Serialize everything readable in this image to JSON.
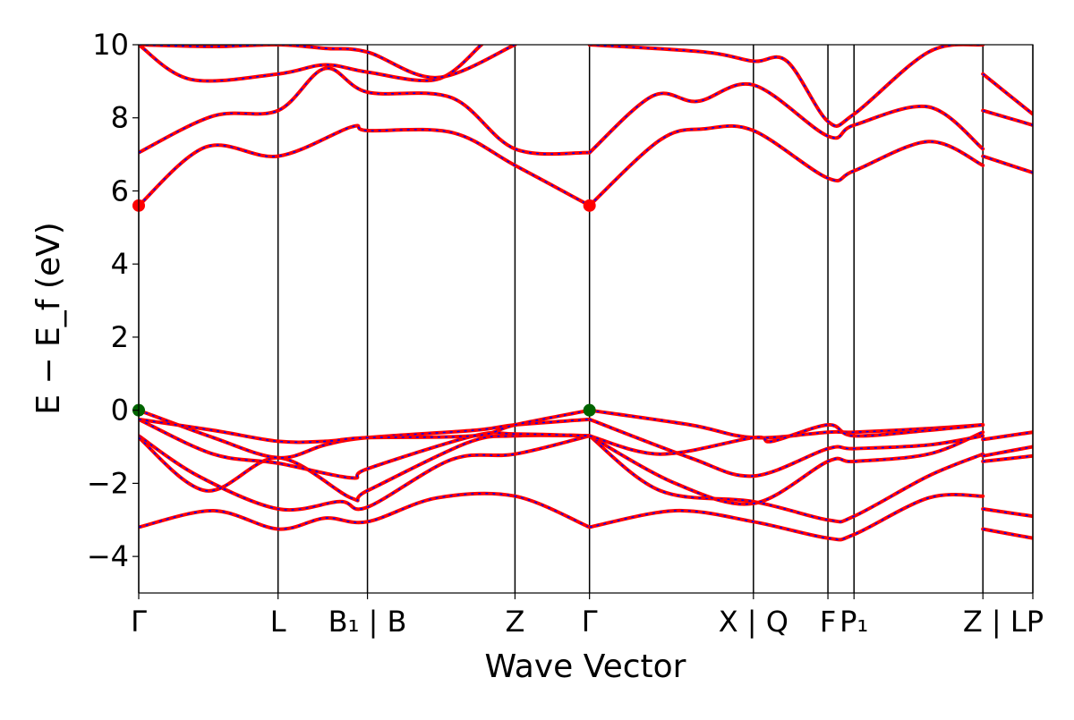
{
  "chart_data": {
    "type": "line",
    "title": "",
    "xlabel": "Wave Vector",
    "ylabel": "E − E_f (eV)",
    "ylim": [
      -5,
      10
    ],
    "yticks": [
      -4,
      -2,
      0,
      2,
      4,
      6,
      8,
      10
    ],
    "ytick_labels": [
      "−4",
      "−2",
      "0",
      "2",
      "4",
      "6",
      "8",
      "10"
    ],
    "xlim": [
      0,
      12.0
    ],
    "kpoints": [
      {
        "x": 0.0,
        "label": "Γ"
      },
      {
        "x": 1.87,
        "label": "L"
      },
      {
        "x": 3.07,
        "label": "B₁ | B"
      },
      {
        "x": 5.05,
        "label": "Z"
      },
      {
        "x": 6.05,
        "label": "Γ"
      },
      {
        "x": 8.25,
        "label": "X | Q"
      },
      {
        "x": 9.25,
        "label": "F"
      },
      {
        "x": 9.6,
        "label": "P₁"
      },
      {
        "x": 11.33,
        "label": "Z | LP"
      },
      {
        "x": 12.0,
        "label": ""
      }
    ],
    "bands": [
      {
        "x": [
          0,
          1.0,
          1.87,
          2.5,
          3.07,
          4.0,
          5.05,
          6.05
        ],
        "y": [
          -3.2,
          -2.75,
          -3.25,
          -2.95,
          -3.05,
          -2.4,
          -2.35,
          -3.2
        ]
      },
      {
        "x": [
          0,
          0.8,
          1.87,
          2.7,
          3.07,
          4.2,
          5.05,
          6.05
        ],
        "y": [
          -0.7,
          -1.8,
          -2.7,
          -2.5,
          -2.65,
          -1.35,
          -1.2,
          -0.7
        ]
      },
      {
        "x": [
          0,
          0.9,
          1.87,
          2.85,
          3.07,
          4.4,
          5.05,
          6.05
        ],
        "y": [
          -0.75,
          -2.2,
          -1.3,
          -2.4,
          -2.2,
          -0.9,
          -0.7,
          -0.7
        ]
      },
      {
        "x": [
          0,
          1.0,
          1.87,
          2.85,
          3.07,
          4.5,
          5.05,
          6.05
        ],
        "y": [
          -0.25,
          -1.2,
          -1.45,
          -1.85,
          -1.6,
          -0.7,
          -0.65,
          -0.7
        ]
      },
      {
        "x": [
          0,
          1.0,
          1.87,
          2.5,
          3.07,
          4.5,
          5.05,
          6.05
        ],
        "y": [
          0.0,
          -0.75,
          -1.3,
          -0.95,
          -0.75,
          -0.55,
          -0.4,
          -0.25
        ]
      },
      {
        "x": [
          0,
          1.0,
          1.87,
          2.5,
          3.07,
          4.5,
          5.05,
          6.05
        ],
        "y": [
          -0.25,
          -0.55,
          -0.85,
          -0.85,
          -0.75,
          -0.7,
          -0.4,
          0.0
        ]
      },
      {
        "x": [
          6.05,
          7.2,
          8.25,
          9.25,
          9.6,
          10.6,
          11.33
        ],
        "y": [
          -3.2,
          -2.75,
          -3.05,
          -3.5,
          -3.4,
          -2.4,
          -2.35
        ]
      },
      {
        "x": [
          6.05,
          7.0,
          8.25,
          9.25,
          9.6,
          10.6,
          11.33
        ],
        "y": [
          -0.7,
          -2.2,
          -2.5,
          -3.0,
          -2.9,
          -1.8,
          -1.2
        ]
      },
      {
        "x": [
          6.05,
          7.2,
          8.25,
          9.25,
          9.6,
          10.6,
          11.33
        ],
        "y": [
          -0.7,
          -2.0,
          -2.55,
          -1.4,
          -1.4,
          -1.2,
          -0.6
        ]
      },
      {
        "x": [
          6.05,
          7.4,
          8.25,
          9.25,
          9.6,
          10.6,
          11.33
        ],
        "y": [
          -0.25,
          -1.3,
          -1.8,
          -1.05,
          -1.05,
          -0.95,
          -0.7
        ]
      },
      {
        "x": [
          6.05,
          7.4,
          8.25,
          9.25,
          9.6,
          10.6,
          11.33
        ],
        "y": [
          0.0,
          -0.4,
          -0.75,
          -0.6,
          -0.6,
          -0.5,
          -0.4
        ]
      },
      {
        "x": [
          6.05,
          7.0,
          8.25,
          8.5,
          9.25,
          9.6,
          10.6,
          11.33
        ],
        "y": [
          -0.7,
          -1.2,
          -0.75,
          -0.85,
          -0.4,
          -0.7,
          -0.55,
          -0.4
        ]
      },
      {
        "x": [
          11.33,
          12.0
        ],
        "y": [
          -0.8,
          -0.6
        ]
      },
      {
        "x": [
          11.33,
          12.0
        ],
        "y": [
          -1.25,
          -1.0
        ]
      },
      {
        "x": [
          11.33,
          12.0
        ],
        "y": [
          -1.4,
          -1.25
        ]
      },
      {
        "x": [
          11.33,
          12.0
        ],
        "y": [
          -2.7,
          -2.9
        ]
      },
      {
        "x": [
          11.33,
          12.0
        ],
        "y": [
          -3.25,
          -3.5
        ]
      },
      {
        "x": [
          0,
          0.9,
          1.87,
          2.85,
          3.07,
          4.2,
          5.05,
          6.05
        ],
        "y": [
          5.6,
          7.2,
          6.95,
          7.75,
          7.65,
          7.6,
          6.7,
          5.6
        ]
      },
      {
        "x": [
          0,
          1.0,
          1.87,
          2.5,
          3.07,
          4.2,
          5.05,
          6.05
        ],
        "y": [
          7.05,
          8.05,
          8.2,
          9.35,
          8.7,
          8.55,
          7.15,
          7.05
        ]
      },
      {
        "x": [
          0,
          0.7,
          1.87,
          2.5,
          3.07,
          4.0,
          4.6
        ],
        "y": [
          10.0,
          9.05,
          9.2,
          9.45,
          9.25,
          9.05,
          10.0
        ]
      },
      {
        "x": [
          0,
          1.0,
          1.87,
          2.5,
          3.07,
          4.0,
          5.05
        ],
        "y": [
          10.0,
          9.95,
          10.0,
          9.9,
          9.8,
          9.1,
          10.0
        ]
      },
      {
        "x": [
          6.05,
          7.0,
          7.6,
          8.25,
          9.25,
          9.6,
          10.6,
          11.33
        ],
        "y": [
          5.6,
          7.4,
          7.7,
          7.65,
          6.35,
          6.55,
          7.35,
          6.7
        ]
      },
      {
        "x": [
          6.05,
          6.9,
          7.5,
          8.25,
          9.25,
          9.6,
          10.6,
          11.33
        ],
        "y": [
          7.05,
          8.6,
          8.45,
          8.9,
          7.5,
          7.8,
          8.3,
          7.15
        ]
      },
      {
        "x": [
          6.05,
          7.6,
          8.25,
          8.7,
          9.25,
          9.6,
          10.6,
          11.33
        ],
        "y": [
          10.0,
          9.8,
          9.55,
          9.55,
          7.9,
          8.1,
          9.8,
          10.0
        ]
      },
      {
        "x": [
          11.33,
          12.0
        ],
        "y": [
          6.95,
          6.5
        ]
      },
      {
        "x": [
          11.33,
          12.0
        ],
        "y": [
          8.2,
          7.8
        ]
      },
      {
        "x": [
          11.33,
          12.0
        ],
        "y": [
          9.2,
          8.1
        ]
      }
    ],
    "markers": [
      {
        "x": 0.0,
        "y": 5.6,
        "color": "#ff0000"
      },
      {
        "x": 6.05,
        "y": 5.6,
        "color": "#ff0000"
      },
      {
        "x": 0.0,
        "y": 0.0,
        "color": "#006400"
      },
      {
        "x": 6.05,
        "y": 0.0,
        "color": "#006400"
      }
    ],
    "colors": {
      "band": "#ff0000",
      "band_dash": "#0000ff",
      "kline": "#000000",
      "vbm_marker": "#006400",
      "cbm_marker": "#ff0000"
    },
    "grid": false
  }
}
